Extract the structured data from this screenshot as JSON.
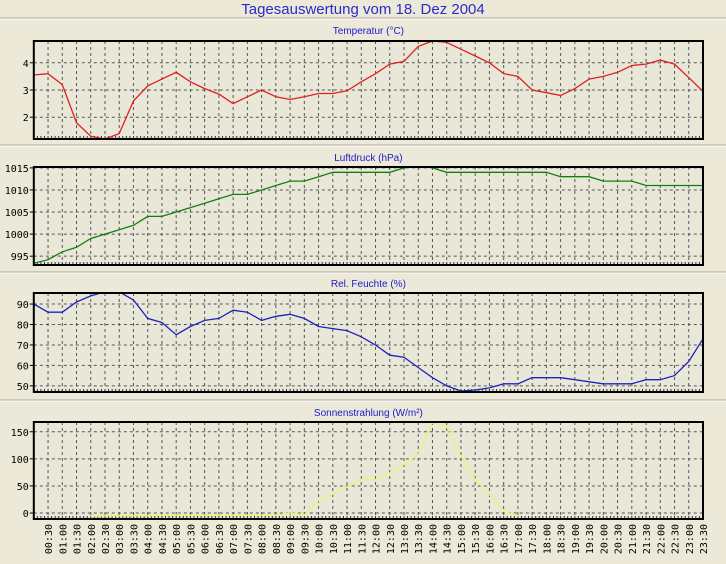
{
  "title": "Tagesauswertung vom 18. Dez 2004",
  "colors": {
    "background": "#ece9d8",
    "plot_background": "#e9e8d8",
    "title": "#2b2bc8",
    "temperature": "#e02020",
    "pressure": "#108010",
    "humidity": "#2020c0",
    "solar": "#f0f070"
  },
  "chart_data": [
    {
      "type": "line",
      "title": "Temperatur (°C)",
      "ylim": [
        1.2,
        4.8
      ],
      "yticks": [
        2,
        3,
        4
      ],
      "grid": true,
      "color": "#e02020",
      "values": [
        3.55,
        3.6,
        3.2,
        1.8,
        1.3,
        1.2,
        1.4,
        2.6,
        3.15,
        3.4,
        3.65,
        3.3,
        3.05,
        2.85,
        2.5,
        2.75,
        3.0,
        2.75,
        2.65,
        2.75,
        2.87,
        2.87,
        2.97,
        3.3,
        3.6,
        3.95,
        4.05,
        4.6,
        4.8,
        4.75,
        4.5,
        4.25,
        4.0,
        3.6,
        3.5,
        3.0,
        2.9,
        2.8,
        3.05,
        3.4,
        3.5,
        3.65,
        3.9,
        3.95,
        4.1,
        3.95,
        3.45,
        2.95
      ]
    },
    {
      "type": "line",
      "title": "Luftdruck (hPa)",
      "ylim": [
        993,
        1015.2
      ],
      "yticks": [
        995,
        1000,
        1005,
        1010,
        1015
      ],
      "grid": true,
      "color": "#108010",
      "values": [
        993.4,
        994.2,
        996,
        997,
        999,
        1000,
        1001,
        1002,
        1004,
        1004,
        1005,
        1006,
        1007,
        1008,
        1009,
        1009,
        1010,
        1011,
        1012,
        1012,
        1013,
        1014,
        1014,
        1014,
        1014,
        1014,
        1015,
        1015.6,
        1015,
        1014,
        1014,
        1014,
        1014,
        1014,
        1014,
        1014,
        1014,
        1013,
        1013,
        1013,
        1012,
        1012,
        1012,
        1011,
        1011,
        1011,
        1011,
        1011
      ]
    },
    {
      "type": "line",
      "title": "Rel. Feuchte (%)",
      "ylim": [
        47,
        95.4
      ],
      "yticks": [
        50,
        60,
        70,
        80,
        90
      ],
      "grid": true,
      "color": "#2020c0",
      "values": [
        90,
        86,
        86,
        91,
        94,
        96,
        96,
        92,
        83,
        81,
        75,
        79,
        82,
        83,
        87,
        86,
        82,
        84,
        85,
        83,
        79,
        78,
        77,
        74,
        70,
        65,
        64,
        59,
        54,
        50,
        47.5,
        48,
        49,
        51,
        51,
        54,
        54,
        54,
        53,
        52,
        51,
        51,
        51,
        53,
        53,
        55,
        62,
        73
      ]
    },
    {
      "type": "line",
      "title": "Sonnenstrahlung (W/m²)",
      "ylim": [
        -11,
        168
      ],
      "yticks": [
        0,
        50,
        100,
        150
      ],
      "grid": true,
      "color": "#f0f070",
      "values": [
        null,
        null,
        null,
        null,
        -6,
        -5,
        -5,
        -5,
        -5,
        -4,
        -4,
        -4,
        -4,
        -4,
        -4,
        -4,
        -4,
        -4,
        0,
        -3,
        22,
        35,
        48,
        62,
        62,
        74,
        90,
        108,
        167,
        160,
        105,
        62,
        34,
        3,
        -6,
        null,
        null,
        null,
        null,
        null,
        null,
        null,
        null,
        null,
        null,
        null,
        null,
        null
      ]
    }
  ],
  "x_labels": [
    "00:30",
    "01:00",
    "01:30",
    "02:00",
    "02:30",
    "03:00",
    "03:30",
    "04:00",
    "04:30",
    "05:00",
    "05:30",
    "06:00",
    "06:30",
    "07:00",
    "07:30",
    "08:00",
    "08:30",
    "09:00",
    "09:30",
    "10:00",
    "10:30",
    "11:00",
    "11:30",
    "12:00",
    "12:30",
    "13:00",
    "13:30",
    "14:00",
    "14:30",
    "15:00",
    "15:30",
    "16:00",
    "16:30",
    "17:00",
    "17:30",
    "18:00",
    "18:30",
    "19:00",
    "19:30",
    "20:00",
    "20:30",
    "21:00",
    "21:30",
    "22:00",
    "22:30",
    "23:00",
    "23:30"
  ]
}
